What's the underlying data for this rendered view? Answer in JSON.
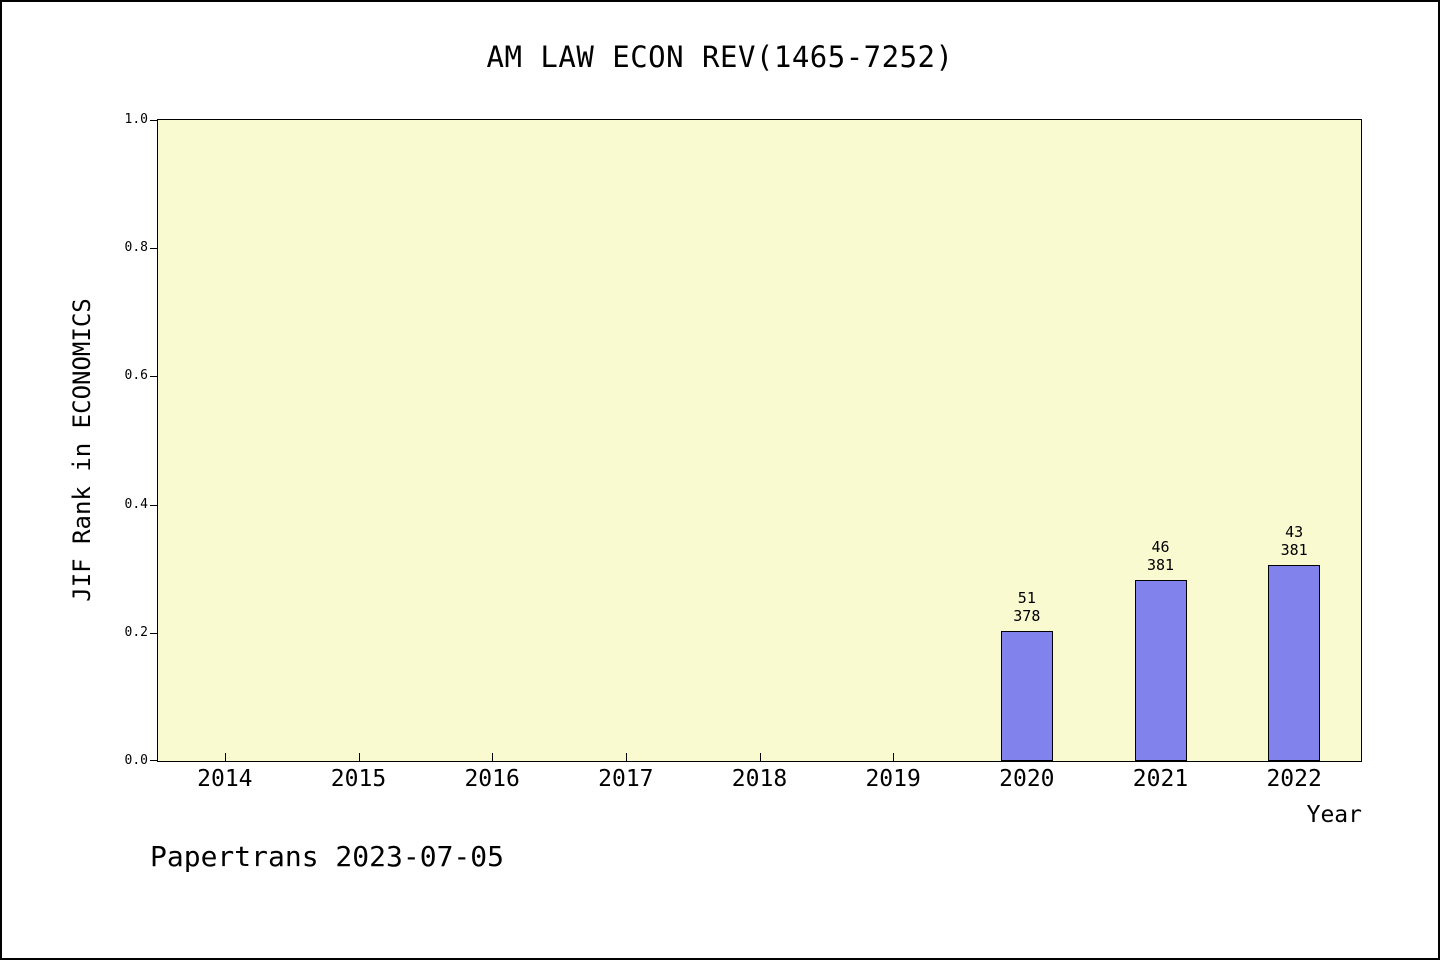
{
  "chart_data": {
    "type": "bar",
    "title": "AM LAW ECON REV(1465-7252)",
    "xlabel": "Year",
    "ylabel": "JIF Rank in ECONOMICS",
    "ylim": [
      0,
      1
    ],
    "yticks": [
      0,
      0.2,
      0.4,
      0.6,
      0.8,
      1.0
    ],
    "ytick_labels": [
      "0.0",
      "0.2",
      "0.4",
      "0.6",
      "0.8",
      "1.0"
    ],
    "categories": [
      "2014",
      "2015",
      "2016",
      "2017",
      "2018",
      "2019",
      "2020",
      "2021",
      "2022"
    ],
    "grid": false,
    "legend": "none",
    "bars": [
      {
        "year": "2020",
        "rank": 51,
        "total": 378,
        "height_frac": 0.203
      },
      {
        "year": "2021",
        "rank": 46,
        "total": 381,
        "height_frac": 0.283
      },
      {
        "year": "2022",
        "rank": 43,
        "total": 381,
        "height_frac": 0.305
      }
    ],
    "colors": {
      "bar_fill": "#8282ec",
      "bar_border": "#000000",
      "plot_background": "#fafad0",
      "axis": "#000000",
      "page_background": "#ffffff"
    }
  },
  "footer": {
    "text": "Papertrans 2023-07-05"
  }
}
